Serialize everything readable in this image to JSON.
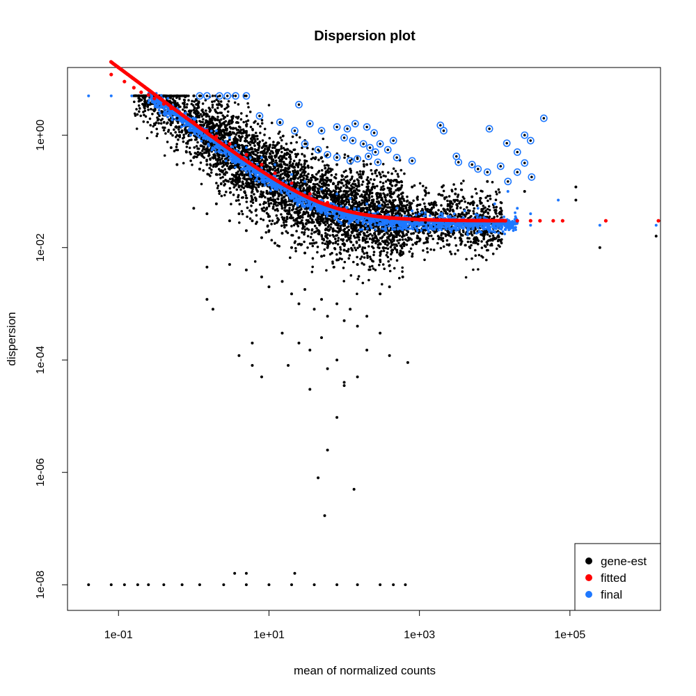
{
  "chart_data": {
    "type": "scatter",
    "title": "Dispersion plot",
    "xlabel": "mean of normalized counts",
    "ylabel": "dispersion",
    "x_scale": "log10",
    "y_scale": "log10",
    "xlim": [
      0.021,
      1600000
    ],
    "ylim": [
      3.5e-09,
      16
    ],
    "x_ticks": [
      {
        "value": 0.1,
        "label": "1e-01"
      },
      {
        "value": 10,
        "label": "1e+01"
      },
      {
        "value": 1000,
        "label": "1e+03"
      },
      {
        "value": 100000,
        "label": "1e+05"
      }
    ],
    "y_ticks": [
      {
        "value": 1e-08,
        "label": "1e-08"
      },
      {
        "value": 1e-06,
        "label": "1e-06"
      },
      {
        "value": 0.0001,
        "label": "1e-04"
      },
      {
        "value": 0.01,
        "label": "1e-02"
      },
      {
        "value": 1,
        "label": "1e+00"
      }
    ],
    "grid": false,
    "legend_position": "bottom-right",
    "colors": {
      "gene_est": "#000000",
      "fitted": "#ff0000",
      "final": "#1e78ff",
      "outlier_ring": "#1e78ff"
    },
    "series": [
      {
        "name": "gene-est",
        "color": "#000000",
        "points": [
          [
            0.04,
            1e-08
          ],
          [
            0.08,
            1e-08
          ],
          [
            0.12,
            1e-08
          ],
          [
            0.18,
            1e-08
          ],
          [
            0.25,
            1e-08
          ],
          [
            0.4,
            1e-08
          ],
          [
            0.7,
            1e-08
          ],
          [
            1.2,
            1e-08
          ],
          [
            2.5,
            1e-08
          ],
          [
            5,
            1e-08
          ],
          [
            10,
            1e-08
          ],
          [
            20,
            1e-08
          ],
          [
            40,
            1e-08
          ],
          [
            80,
            1e-08
          ],
          [
            150,
            1e-08
          ],
          [
            300,
            1e-08
          ],
          [
            450,
            1e-08
          ],
          [
            650,
            1e-08
          ],
          [
            3.5,
            1.6e-08
          ],
          [
            5,
            1.6e-08
          ],
          [
            22,
            1.6e-08
          ],
          [
            0.3,
            5
          ],
          [
            0.4,
            5
          ],
          [
            0.5,
            5
          ],
          [
            0.6,
            5
          ],
          [
            0.8,
            5
          ],
          [
            1.0,
            5
          ],
          [
            1.2,
            5
          ],
          [
            0.5,
            3
          ],
          [
            0.6,
            2
          ],
          [
            0.7,
            1.2
          ],
          [
            0.9,
            2.5
          ],
          [
            1.1,
            1.5
          ],
          [
            1.5,
            2.2
          ],
          [
            2.0,
            1.5
          ],
          [
            2.5,
            0.9
          ],
          [
            3.0,
            1.8
          ],
          [
            4.0,
            0.6
          ],
          [
            5.0,
            1.1
          ],
          [
            6.0,
            0.8
          ],
          [
            8.0,
            0.5
          ],
          [
            10,
            0.6
          ],
          [
            15,
            0.4
          ],
          [
            20,
            0.5
          ],
          [
            30,
            0.35
          ],
          [
            50,
            0.4
          ],
          [
            80,
            0.3
          ],
          [
            120,
            0.25
          ],
          [
            200,
            0.3
          ],
          [
            300,
            0.2
          ],
          [
            500,
            0.15
          ],
          [
            800,
            0.12
          ],
          [
            1200,
            0.1
          ],
          [
            2000,
            0.12
          ],
          [
            3000,
            0.09
          ],
          [
            5000,
            0.08
          ],
          [
            8000,
            0.15
          ],
          [
            12000,
            0.05
          ],
          [
            25000,
            0.1
          ],
          [
            0.5,
            0.6
          ],
          [
            0.6,
            0.3
          ],
          [
            0.8,
            0.5
          ],
          [
            1.0,
            0.4
          ],
          [
            1.2,
            0.25
          ],
          [
            1.5,
            0.3
          ],
          [
            2.0,
            0.2
          ],
          [
            2.5,
            0.15
          ],
          [
            3.0,
            0.25
          ],
          [
            4.0,
            0.12
          ],
          [
            5.0,
            0.2
          ],
          [
            6.0,
            0.1
          ],
          [
            8.0,
            0.08
          ],
          [
            10,
            0.06
          ],
          [
            12,
            0.1
          ],
          [
            15,
            0.05
          ],
          [
            20,
            0.07
          ],
          [
            25,
            0.045
          ],
          [
            30,
            0.04
          ],
          [
            40,
            0.05
          ],
          [
            50,
            0.035
          ],
          [
            60,
            0.03
          ],
          [
            80,
            0.04
          ],
          [
            100,
            0.03
          ],
          [
            150,
            0.025
          ],
          [
            200,
            0.03
          ],
          [
            300,
            0.028
          ],
          [
            500,
            0.025
          ],
          [
            800,
            0.03
          ],
          [
            1200,
            0.028
          ],
          [
            1.0,
            0.05
          ],
          [
            1.5,
            0.04
          ],
          [
            2.0,
            0.06
          ],
          [
            3.0,
            0.03
          ],
          [
            4.0,
            0.04
          ],
          [
            5.0,
            0.02
          ],
          [
            6.0,
            0.03
          ],
          [
            8.0,
            0.015
          ],
          [
            10,
            0.02
          ],
          [
            12,
            0.012
          ],
          [
            15,
            0.018
          ],
          [
            20,
            0.01
          ],
          [
            25,
            0.015
          ],
          [
            30,
            0.008
          ],
          [
            40,
            0.012
          ],
          [
            50,
            0.007
          ],
          [
            60,
            0.01
          ],
          [
            80,
            0.006
          ],
          [
            100,
            0.009
          ],
          [
            150,
            0.005
          ],
          [
            200,
            0.008
          ],
          [
            300,
            0.006
          ],
          [
            500,
            0.009
          ],
          [
            800,
            0.007
          ],
          [
            3.0,
            0.005
          ],
          [
            5.0,
            0.004
          ],
          [
            8.0,
            0.003
          ],
          [
            10,
            0.002
          ],
          [
            15,
            0.0025
          ],
          [
            20,
            0.0015
          ],
          [
            25,
            0.001
          ],
          [
            30,
            0.0018
          ],
          [
            40,
            0.0008
          ],
          [
            50,
            0.0012
          ],
          [
            60,
            0.0006
          ],
          [
            80,
            0.001
          ],
          [
            100,
            0.0005
          ],
          [
            120,
            0.0008
          ],
          [
            150,
            0.0004
          ],
          [
            200,
            0.0006
          ],
          [
            300,
            0.0015
          ],
          [
            400,
            0.002
          ],
          [
            600,
            0.003
          ],
          [
            1.5,
            0.0045
          ],
          [
            1.5,
            0.0012
          ],
          [
            1.8,
            0.0008
          ],
          [
            6.0,
            0.0002
          ],
          [
            15,
            0.0003
          ],
          [
            25,
            0.0002
          ],
          [
            35,
            0.00015
          ],
          [
            50,
            0.00025
          ],
          [
            80,
            0.0001
          ],
          [
            4.0,
            0.00012
          ],
          [
            6.0,
            8e-05
          ],
          [
            8.0,
            5e-05
          ],
          [
            18,
            8e-05
          ],
          [
            35,
            3e-05
          ],
          [
            60,
            7e-05
          ],
          [
            100,
            4e-05
          ],
          [
            150,
            5e-05
          ],
          [
            200,
            0.00015
          ],
          [
            300,
            0.0003
          ],
          [
            400,
            0.00012
          ],
          [
            700,
            9e-05
          ],
          [
            100,
            3.5e-05
          ],
          [
            80,
            9.5e-06
          ],
          [
            45,
            8e-07
          ],
          [
            60,
            2.5e-06
          ],
          [
            135,
            5e-07
          ],
          [
            55,
            1.7e-07
          ],
          [
            120000,
            0.12
          ],
          [
            120000,
            0.07
          ],
          [
            250000,
            0.01
          ],
          [
            1400000,
            0.016
          ]
        ]
      },
      {
        "name": "fitted",
        "color": "#ff0000",
        "points": [
          [
            0.08,
            12
          ],
          [
            0.12,
            9
          ],
          [
            0.16,
            7
          ],
          [
            0.2,
            5.8
          ],
          [
            0.25,
            5.2
          ],
          [
            0.3,
            4.5
          ],
          [
            0.4,
            3.6
          ],
          [
            0.5,
            3.0
          ],
          [
            0.7,
            2.3
          ],
          [
            1,
            1.7
          ],
          [
            1.5,
            1.2
          ],
          [
            2,
            0.95
          ],
          [
            3,
            0.7
          ],
          [
            5,
            0.45
          ],
          [
            8,
            0.3
          ],
          [
            12,
            0.21
          ],
          [
            20,
            0.14
          ],
          [
            35,
            0.09
          ],
          [
            60,
            0.063
          ],
          [
            100,
            0.048
          ],
          [
            200,
            0.038
          ],
          [
            400,
            0.033
          ],
          [
            1000,
            0.031
          ],
          [
            3000,
            0.03
          ],
          [
            10000,
            0.03
          ],
          [
            20000,
            0.03
          ],
          [
            30000,
            0.03
          ],
          [
            40000,
            0.03
          ],
          [
            60000,
            0.03
          ],
          [
            80000,
            0.03
          ],
          [
            300000,
            0.03
          ],
          [
            1500000,
            0.03
          ]
        ]
      },
      {
        "name": "final",
        "color": "#1e78ff",
        "points": [
          [
            0.04,
            5
          ],
          [
            0.08,
            5
          ],
          [
            0.15,
            5
          ],
          [
            0.25,
            5
          ],
          [
            0.5,
            2.5
          ],
          [
            0.8,
            1.6
          ],
          [
            1.2,
            1.1
          ],
          [
            2.0,
            0.75
          ],
          [
            3.0,
            0.55
          ],
          [
            5.0,
            0.38
          ],
          [
            8.0,
            0.26
          ],
          [
            12,
            0.19
          ],
          [
            20,
            0.13
          ],
          [
            30,
            0.095
          ],
          [
            50,
            0.07
          ],
          [
            80,
            0.055
          ],
          [
            120,
            0.045
          ],
          [
            200,
            0.038
          ],
          [
            400,
            0.034
          ],
          [
            800,
            0.032
          ],
          [
            1500,
            0.031
          ],
          [
            3000,
            0.03
          ],
          [
            6000,
            0.03
          ],
          [
            12000,
            0.03
          ],
          [
            0.6,
            3
          ],
          [
            1.0,
            2
          ],
          [
            2.0,
            1.2
          ],
          [
            3.0,
            0.9
          ],
          [
            5.0,
            0.6
          ],
          [
            8.0,
            0.4
          ],
          [
            12,
            0.3
          ],
          [
            20,
            0.2
          ],
          [
            30,
            0.15
          ],
          [
            50,
            0.11
          ],
          [
            80,
            0.09
          ],
          [
            120,
            0.075
          ],
          [
            200,
            0.06
          ],
          [
            300,
            0.055
          ],
          [
            500,
            0.05
          ],
          [
            800,
            0.045
          ],
          [
            1200,
            0.042
          ],
          [
            2000,
            0.04
          ],
          [
            4000,
            0.045
          ],
          [
            6000,
            0.05
          ],
          [
            10000,
            0.06
          ],
          [
            20000,
            0.05
          ],
          [
            30000,
            0.04
          ],
          [
            5.0,
            0.22
          ],
          [
            8.0,
            0.16
          ],
          [
            12,
            0.11
          ],
          [
            20,
            0.075
          ],
          [
            30,
            0.055
          ],
          [
            50,
            0.042
          ],
          [
            80,
            0.035
          ],
          [
            120,
            0.03
          ],
          [
            200,
            0.028
          ],
          [
            300,
            0.027
          ],
          [
            500,
            0.028
          ],
          [
            800,
            0.026
          ],
          [
            1500,
            0.026
          ],
          [
            3000,
            0.025
          ],
          [
            6000,
            0.027
          ],
          [
            12000,
            0.026
          ],
          [
            20000,
            0.028
          ],
          [
            30000,
            0.025
          ],
          [
            15000,
            0.1
          ],
          [
            70000,
            0.07
          ],
          [
            250000,
            0.025
          ],
          [
            1400000,
            0.025
          ]
        ]
      }
    ],
    "outliers": [
      [
        1.2,
        5
      ],
      [
        1.5,
        5
      ],
      [
        2.2,
        5
      ],
      [
        2.8,
        5
      ],
      [
        3.6,
        5
      ],
      [
        5.0,
        5
      ],
      [
        25,
        3.5
      ],
      [
        7.5,
        2.2
      ],
      [
        14,
        1.7
      ],
      [
        22,
        1.2
      ],
      [
        35,
        1.6
      ],
      [
        50,
        1.2
      ],
      [
        80,
        1.4
      ],
      [
        110,
        1.3
      ],
      [
        140,
        1.6
      ],
      [
        200,
        1.4
      ],
      [
        250,
        1.1
      ],
      [
        100,
        0.9
      ],
      [
        130,
        0.8
      ],
      [
        180,
        0.7
      ],
      [
        220,
        0.6
      ],
      [
        260,
        0.5
      ],
      [
        300,
        0.7
      ],
      [
        380,
        0.55
      ],
      [
        450,
        0.8
      ],
      [
        30,
        0.7
      ],
      [
        45,
        0.55
      ],
      [
        60,
        0.45
      ],
      [
        80,
        0.4
      ],
      [
        120,
        0.35
      ],
      [
        150,
        0.38
      ],
      [
        210,
        0.42
      ],
      [
        280,
        0.33
      ],
      [
        500,
        0.4
      ],
      [
        800,
        0.35
      ],
      [
        1900,
        1.5
      ],
      [
        2100,
        1.2
      ],
      [
        3100,
        0.42
      ],
      [
        3300,
        0.33
      ],
      [
        5000,
        0.3
      ],
      [
        6000,
        0.25
      ],
      [
        8000,
        0.22
      ],
      [
        12000,
        0.28
      ],
      [
        15000,
        0.15
      ],
      [
        20000,
        0.22
      ],
      [
        8500,
        1.3
      ],
      [
        14500,
        0.72
      ],
      [
        20000,
        0.5
      ],
      [
        25000,
        0.32
      ],
      [
        25000,
        1.0
      ],
      [
        30000,
        0.8
      ],
      [
        31000,
        0.18
      ],
      [
        45000,
        2.0
      ]
    ],
    "legend": [
      {
        "label": "gene-est",
        "color": "#000000"
      },
      {
        "label": "fitted",
        "color": "#ff0000"
      },
      {
        "label": "final",
        "color": "#1e78ff"
      }
    ]
  }
}
